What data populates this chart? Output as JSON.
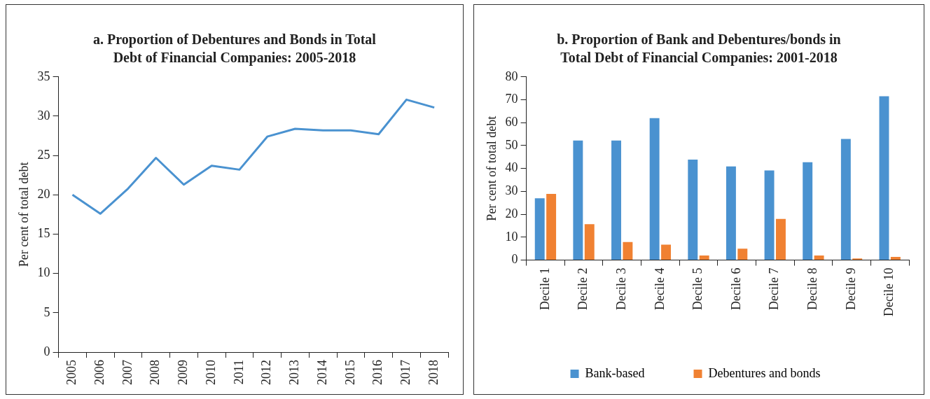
{
  "chart_data": [
    {
      "type": "line",
      "title": "a. Proportion of Debentures and Bonds in Total Debt of Financial Companies: 2005-2018",
      "ylabel": "Per cent of total debt",
      "categories": [
        "2005",
        "2006",
        "2007",
        "2008",
        "2009",
        "2010",
        "2011",
        "2012",
        "2013",
        "2014",
        "2015",
        "2016",
        "2017",
        "2018"
      ],
      "series": [
        {
          "color": "#4a92d0",
          "values": [
            20.0,
            17.6,
            20.8,
            24.7,
            21.3,
            23.7,
            23.2,
            27.4,
            28.4,
            28.2,
            28.2,
            27.7,
            32.1,
            31.1
          ]
        }
      ],
      "ylim": [
        0,
        35
      ],
      "yticks": [
        0,
        5,
        10,
        15,
        20,
        25,
        30,
        35
      ],
      "grid": false,
      "legend": false,
      "marker": "none",
      "line_style": "solid"
    },
    {
      "type": "bar",
      "title": "b. Proportion of Bank and Debentures/bonds in Total Debt of Financial Companies: 2001-2018",
      "ylabel": "Per cent of total debt",
      "categories": [
        "Decile 1",
        "Decile 2",
        "Decile 3",
        "Decile 4",
        "Decile 5",
        "Decile 6",
        "Decile 7",
        "Decile 8",
        "Decile 9",
        "Decile 10"
      ],
      "series": [
        {
          "name": "Bank-based",
          "color": "#4a92d0",
          "values": [
            27.0,
            52.2,
            52.2,
            62.0,
            43.9,
            40.9,
            39.1,
            42.7,
            52.9,
            71.5
          ]
        },
        {
          "name": "Debentures and bonds",
          "color": "#f08132",
          "values": [
            28.9,
            15.7,
            7.9,
            6.7,
            2.0,
            5.0,
            18.0,
            2.0,
            0.7,
            1.4
          ]
        }
      ],
      "ylim": [
        0,
        80
      ],
      "yticks": [
        0,
        10,
        20,
        30,
        40,
        50,
        60,
        70,
        80
      ],
      "grid": false,
      "legend": "bottom"
    }
  ]
}
